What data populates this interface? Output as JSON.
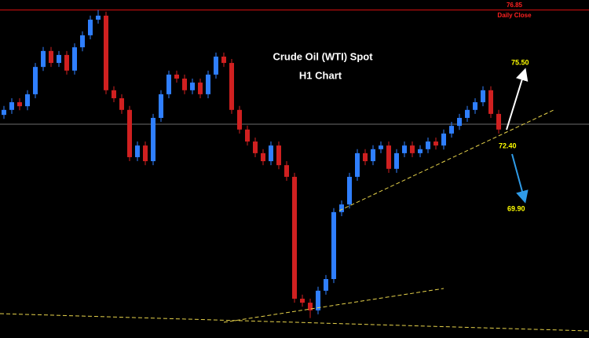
{
  "chart_data": {
    "type": "candlestick",
    "title": "Crude Oil (WTI) Spot",
    "subtitle": "H1 Chart",
    "ylim": [
      67.0,
      77.15
    ],
    "up_color": "#2f7fff",
    "down_color": "#d02020",
    "daily_close": {
      "value": 76.85,
      "label": "76.85",
      "text": "Daily Close",
      "color": "#e01010"
    },
    "current_level": 73.42,
    "annotations": [
      {
        "value": 75.5,
        "label": "75.50"
      },
      {
        "value": 72.4,
        "label": "72.40"
      },
      {
        "value": 69.9,
        "label": "69.90"
      }
    ],
    "open": [
      73.7,
      73.85,
      74.08,
      73.96,
      74.32,
      75.14,
      75.62,
      75.26,
      75.5,
      75.03,
      75.73,
      76.09,
      76.56,
      76.68,
      74.44,
      74.2,
      73.85,
      72.43,
      72.78,
      72.31,
      73.61,
      74.32,
      74.91,
      74.79,
      74.44,
      74.67,
      74.32,
      74.91,
      75.45,
      75.26,
      73.85,
      73.26,
      72.9,
      72.55,
      72.31,
      72.78,
      72.19,
      71.84,
      68.18,
      68.06,
      67.83,
      68.42,
      68.77,
      70.78,
      71.01,
      71.84,
      72.55,
      72.31,
      72.67,
      72.78,
      72.08,
      72.55,
      72.78,
      72.55,
      72.67,
      72.9,
      72.78,
      73.14,
      73.37,
      73.61,
      73.85,
      74.08,
      74.44,
      73.73
    ],
    "high": [
      73.97,
      74.2,
      74.2,
      74.44,
      75.26,
      75.74,
      75.74,
      75.62,
      75.62,
      75.85,
      76.21,
      76.68,
      76.85,
      76.8,
      74.56,
      74.32,
      73.97,
      72.9,
      72.9,
      73.73,
      74.44,
      75.03,
      75.03,
      74.91,
      74.79,
      74.79,
      75.03,
      75.57,
      75.57,
      75.38,
      73.97,
      73.38,
      73.02,
      72.67,
      72.9,
      72.9,
      72.31,
      71.96,
      68.3,
      68.18,
      68.54,
      68.89,
      70.9,
      71.13,
      71.96,
      72.67,
      72.67,
      72.79,
      72.9,
      72.9,
      72.67,
      72.9,
      72.9,
      72.79,
      73.02,
      73.02,
      73.26,
      73.49,
      73.73,
      73.97,
      74.2,
      74.56,
      74.56,
      73.85
    ],
    "low": [
      73.58,
      73.73,
      73.84,
      73.84,
      74.2,
      75.02,
      75.14,
      75.14,
      74.91,
      74.91,
      75.61,
      75.97,
      76.44,
      74.32,
      74.08,
      73.73,
      72.31,
      72.31,
      72.19,
      72.19,
      73.49,
      74.2,
      74.67,
      74.32,
      74.32,
      74.2,
      74.2,
      74.79,
      75.14,
      73.73,
      73.14,
      72.78,
      72.43,
      72.19,
      72.19,
      72.07,
      71.72,
      68.06,
      67.94,
      67.6,
      67.71,
      68.3,
      68.65,
      70.66,
      70.89,
      71.72,
      72.19,
      72.19,
      72.55,
      71.96,
      71.96,
      72.43,
      72.43,
      72.43,
      72.55,
      72.66,
      72.66,
      73.02,
      73.25,
      73.49,
      73.73,
      73.96,
      73.61,
      73.14
    ],
    "close": [
      73.85,
      74.08,
      73.96,
      74.32,
      75.14,
      75.62,
      75.26,
      75.5,
      75.03,
      75.73,
      76.09,
      76.56,
      76.68,
      74.44,
      74.2,
      73.85,
      72.43,
      72.78,
      72.31,
      73.61,
      74.32,
      74.91,
      74.79,
      74.44,
      74.67,
      74.32,
      74.91,
      75.45,
      75.26,
      73.85,
      73.26,
      72.9,
      72.55,
      72.31,
      72.78,
      72.19,
      71.84,
      68.18,
      68.06,
      67.83,
      68.42,
      68.77,
      70.78,
      71.01,
      71.84,
      72.55,
      72.31,
      72.67,
      72.78,
      72.08,
      72.55,
      72.78,
      72.55,
      72.67,
      72.9,
      72.78,
      73.14,
      73.37,
      73.61,
      73.85,
      74.08,
      74.44,
      73.73,
      73.26
    ]
  }
}
